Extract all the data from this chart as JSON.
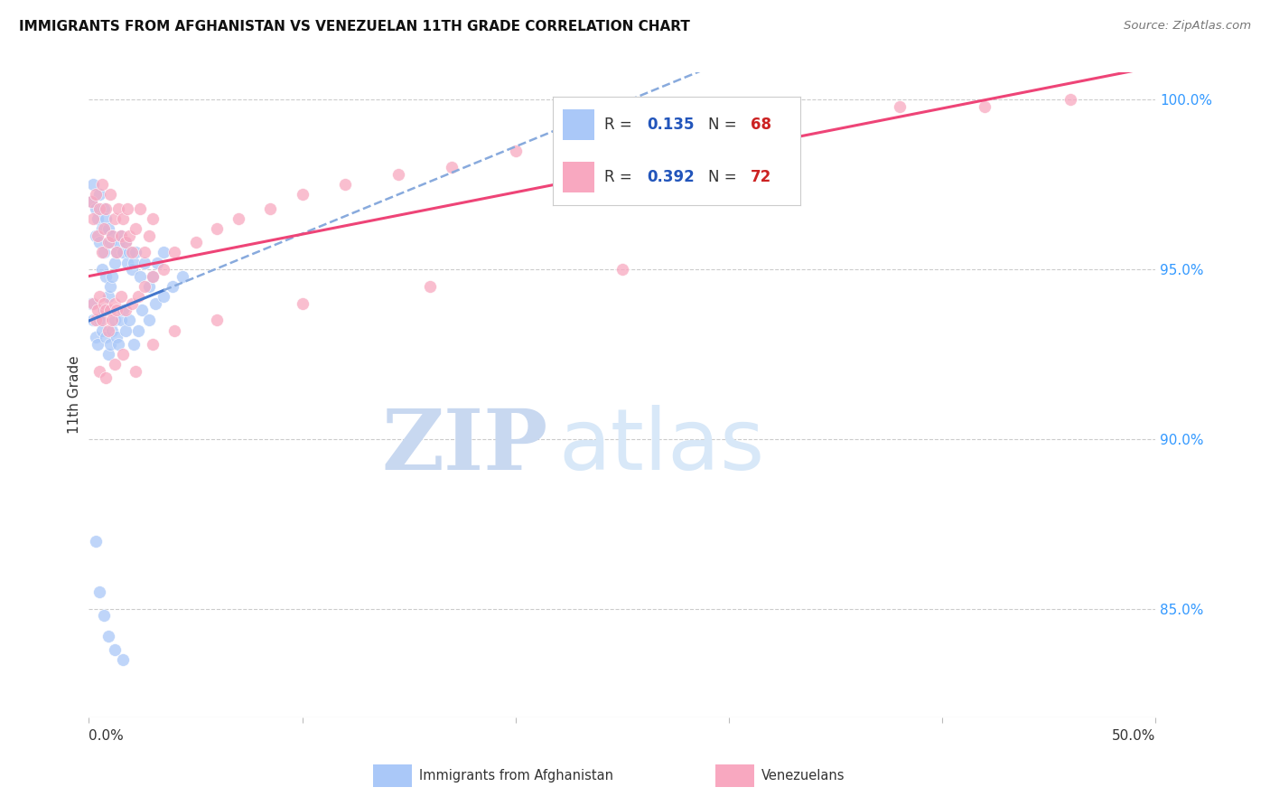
{
  "title": "IMMIGRANTS FROM AFGHANISTAN VS VENEZUELAN 11TH GRADE CORRELATION CHART",
  "source": "Source: ZipAtlas.com",
  "ylabel": "11th Grade",
  "right_yticks_labels": [
    "100.0%",
    "95.0%",
    "90.0%",
    "85.0%"
  ],
  "right_ytick_vals": [
    1.0,
    0.95,
    0.9,
    0.85
  ],
  "xlim": [
    0.0,
    0.5
  ],
  "ylim": [
    0.818,
    1.008
  ],
  "afghanistan_color": "#aac8f8",
  "venezuela_color": "#f8a8c0",
  "afghanistan_R": "0.135",
  "afghanistan_N": "68",
  "venezuela_R": "0.392",
  "venezuela_N": "72",
  "afghanistan_line_color": "#4477cc",
  "venezuela_line_color": "#ee4477",
  "afghanistan_dash_color": "#88aadd",
  "legend_R_color": "#2255bb",
  "legend_N_color": "#cc2222",
  "watermark_zip": "ZIP",
  "watermark_atlas": "atlas",
  "watermark_zip_color": "#c8d8f0",
  "watermark_atlas_color": "#d8e8f8",
  "background_color": "#ffffff",
  "grid_color": "#cccccc",
  "title_color": "#111111",
  "source_color": "#777777",
  "axis_label_color": "#333333",
  "right_axis_color": "#3399ff",
  "bottom_label_color": "#333333",
  "af_x": [
    0.001,
    0.002,
    0.003,
    0.003,
    0.004,
    0.005,
    0.005,
    0.006,
    0.006,
    0.007,
    0.007,
    0.008,
    0.008,
    0.009,
    0.009,
    0.01,
    0.01,
    0.011,
    0.011,
    0.012,
    0.013,
    0.014,
    0.015,
    0.016,
    0.017,
    0.018,
    0.019,
    0.02,
    0.021,
    0.022,
    0.024,
    0.026,
    0.028,
    0.03,
    0.032,
    0.035,
    0.001,
    0.002,
    0.003,
    0.004,
    0.005,
    0.006,
    0.007,
    0.008,
    0.009,
    0.01,
    0.011,
    0.012,
    0.013,
    0.014,
    0.015,
    0.016,
    0.017,
    0.019,
    0.021,
    0.023,
    0.025,
    0.028,
    0.031,
    0.035,
    0.039,
    0.044,
    0.003,
    0.005,
    0.007,
    0.009,
    0.012,
    0.016
  ],
  "af_y": [
    0.97,
    0.975,
    0.968,
    0.96,
    0.965,
    0.958,
    0.972,
    0.962,
    0.95,
    0.968,
    0.955,
    0.965,
    0.948,
    0.962,
    0.942,
    0.958,
    0.945,
    0.96,
    0.948,
    0.952,
    0.955,
    0.958,
    0.96,
    0.955,
    0.958,
    0.952,
    0.955,
    0.95,
    0.952,
    0.955,
    0.948,
    0.952,
    0.945,
    0.948,
    0.952,
    0.955,
    0.94,
    0.935,
    0.93,
    0.928,
    0.935,
    0.932,
    0.938,
    0.93,
    0.925,
    0.928,
    0.932,
    0.935,
    0.93,
    0.928,
    0.935,
    0.938,
    0.932,
    0.935,
    0.928,
    0.932,
    0.938,
    0.935,
    0.94,
    0.942,
    0.945,
    0.948,
    0.87,
    0.855,
    0.848,
    0.842,
    0.838,
    0.835
  ],
  "ve_x": [
    0.001,
    0.002,
    0.003,
    0.004,
    0.005,
    0.006,
    0.006,
    0.007,
    0.008,
    0.009,
    0.01,
    0.011,
    0.012,
    0.013,
    0.014,
    0.015,
    0.016,
    0.017,
    0.018,
    0.019,
    0.02,
    0.022,
    0.024,
    0.026,
    0.028,
    0.03,
    0.002,
    0.003,
    0.004,
    0.005,
    0.006,
    0.007,
    0.008,
    0.009,
    0.01,
    0.011,
    0.012,
    0.013,
    0.015,
    0.017,
    0.02,
    0.023,
    0.026,
    0.03,
    0.035,
    0.04,
    0.05,
    0.06,
    0.07,
    0.085,
    0.1,
    0.12,
    0.145,
    0.17,
    0.2,
    0.24,
    0.28,
    0.33,
    0.38,
    0.42,
    0.46,
    0.005,
    0.008,
    0.012,
    0.016,
    0.022,
    0.03,
    0.04,
    0.06,
    0.1,
    0.16,
    0.25
  ],
  "ve_y": [
    0.97,
    0.965,
    0.972,
    0.96,
    0.968,
    0.955,
    0.975,
    0.962,
    0.968,
    0.958,
    0.972,
    0.96,
    0.965,
    0.955,
    0.968,
    0.96,
    0.965,
    0.958,
    0.968,
    0.96,
    0.955,
    0.962,
    0.968,
    0.955,
    0.96,
    0.965,
    0.94,
    0.935,
    0.938,
    0.942,
    0.935,
    0.94,
    0.938,
    0.932,
    0.938,
    0.935,
    0.94,
    0.938,
    0.942,
    0.938,
    0.94,
    0.942,
    0.945,
    0.948,
    0.95,
    0.955,
    0.958,
    0.962,
    0.965,
    0.968,
    0.972,
    0.975,
    0.978,
    0.98,
    0.985,
    0.988,
    0.99,
    0.995,
    0.998,
    0.998,
    1.0,
    0.92,
    0.918,
    0.922,
    0.925,
    0.92,
    0.928,
    0.932,
    0.935,
    0.94,
    0.945,
    0.95
  ]
}
